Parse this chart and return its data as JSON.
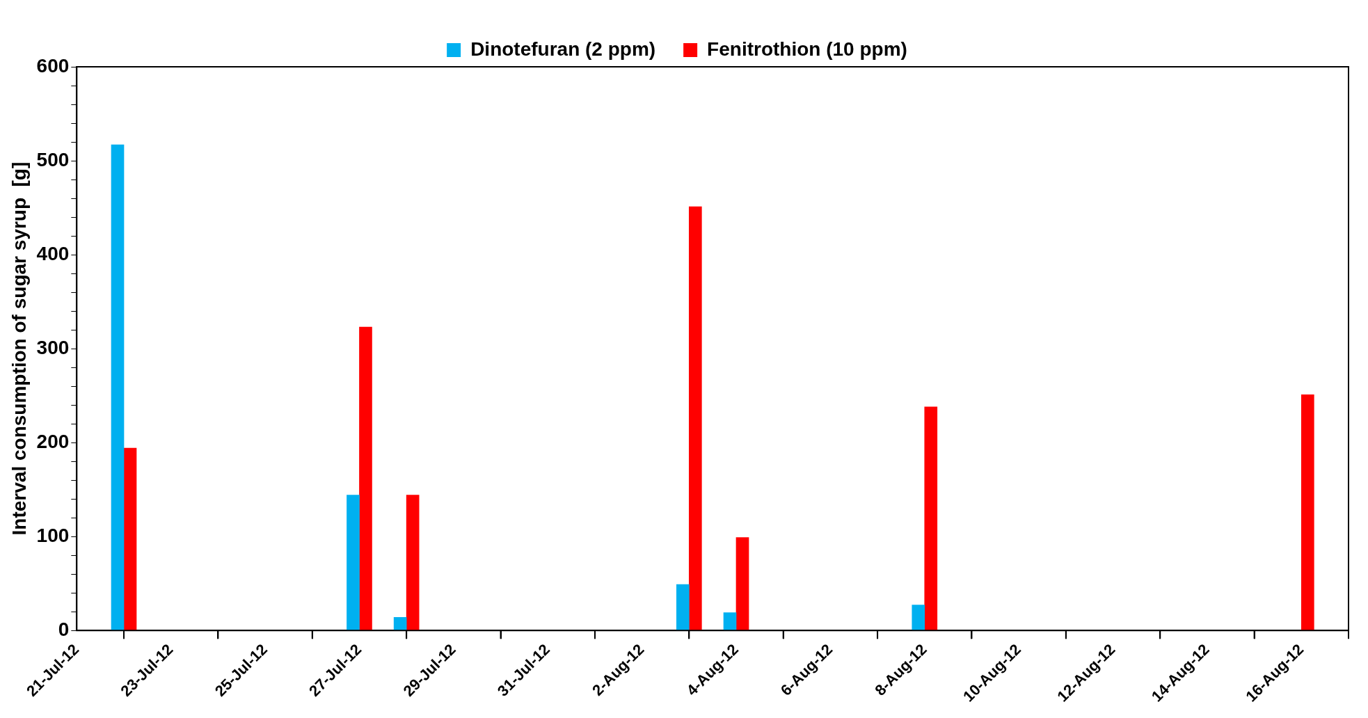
{
  "chart_data": {
    "type": "bar",
    "ylabel": "Interval consumption of sugar syrup  [g]",
    "x": [
      "--07-22",
      "--07-27",
      "--07-28",
      "--08-03",
      "--08-04",
      "--08-08",
      "--08-16"
    ],
    "series": [
      {
        "name": "Dinotefuran (2 ppm)",
        "color": "#00b0f0",
        "values": [
          517,
          144,
          14,
          49,
          19,
          27,
          null
        ]
      },
      {
        "name": "Fenitrothion (10 ppm)",
        "color": "#ff0000",
        "values": [
          194,
          323,
          144,
          451,
          99,
          238,
          251
        ]
      }
    ],
    "xlim": [
      "--07-21",
      "--08-17"
    ],
    "xticks": [
      {
        "value": "--07-21",
        "label": "21-Jul-12"
      },
      {
        "value": "--07-23",
        "label": "23-Jul-12"
      },
      {
        "value": "--07-25",
        "label": "25-Jul-12"
      },
      {
        "value": "--07-27",
        "label": "27-Jul-12"
      },
      {
        "value": "--07-29",
        "label": "29-Jul-12"
      },
      {
        "value": "--07-31",
        "label": "31-Jul-12"
      },
      {
        "value": "--08-02",
        "label": "2-Aug-12"
      },
      {
        "value": "--08-04",
        "label": "4-Aug-12"
      },
      {
        "value": "--08-06",
        "label": "6-Aug-12"
      },
      {
        "value": "--08-08",
        "label": "8-Aug-12"
      },
      {
        "value": "--08-10",
        "label": "10-Aug-12"
      },
      {
        "value": "--08-12",
        "label": "12-Aug-12"
      },
      {
        "value": "--08-14",
        "label": "14-Aug-12"
      },
      {
        "value": "--08-16",
        "label": "16-Aug-12"
      }
    ],
    "ylim": [
      0,
      600
    ],
    "yticks": [
      0,
      {
        "value": 20,
        "label": null
      },
      {
        "value": 40,
        "label": null
      },
      {
        "value": 60,
        "label": null
      },
      {
        "value": 80,
        "label": null
      },
      100,
      {
        "value": 120,
        "label": null
      },
      {
        "value": 140,
        "label": null
      },
      {
        "value": 160,
        "label": null
      },
      {
        "value": 180,
        "label": null
      },
      200,
      {
        "value": 220,
        "label": null
      },
      {
        "value": 240,
        "label": null
      },
      {
        "value": 260,
        "label": null
      },
      {
        "value": 280,
        "label": null
      },
      300,
      {
        "value": 320,
        "label": null
      },
      {
        "value": 340,
        "label": null
      },
      {
        "value": 360,
        "label": null
      },
      {
        "value": 380,
        "label": null
      },
      400,
      {
        "value": 420,
        "label": null
      },
      {
        "value": 440,
        "label": null
      },
      {
        "value": 460,
        "label": null
      },
      {
        "value": 480,
        "label": null
      },
      500,
      {
        "value": 520,
        "label": null
      },
      {
        "value": 540,
        "label": null
      },
      {
        "value": 560,
        "label": null
      },
      {
        "value": 580,
        "label": null
      },
      600
    ],
    "grid": false,
    "legend": "top"
  }
}
